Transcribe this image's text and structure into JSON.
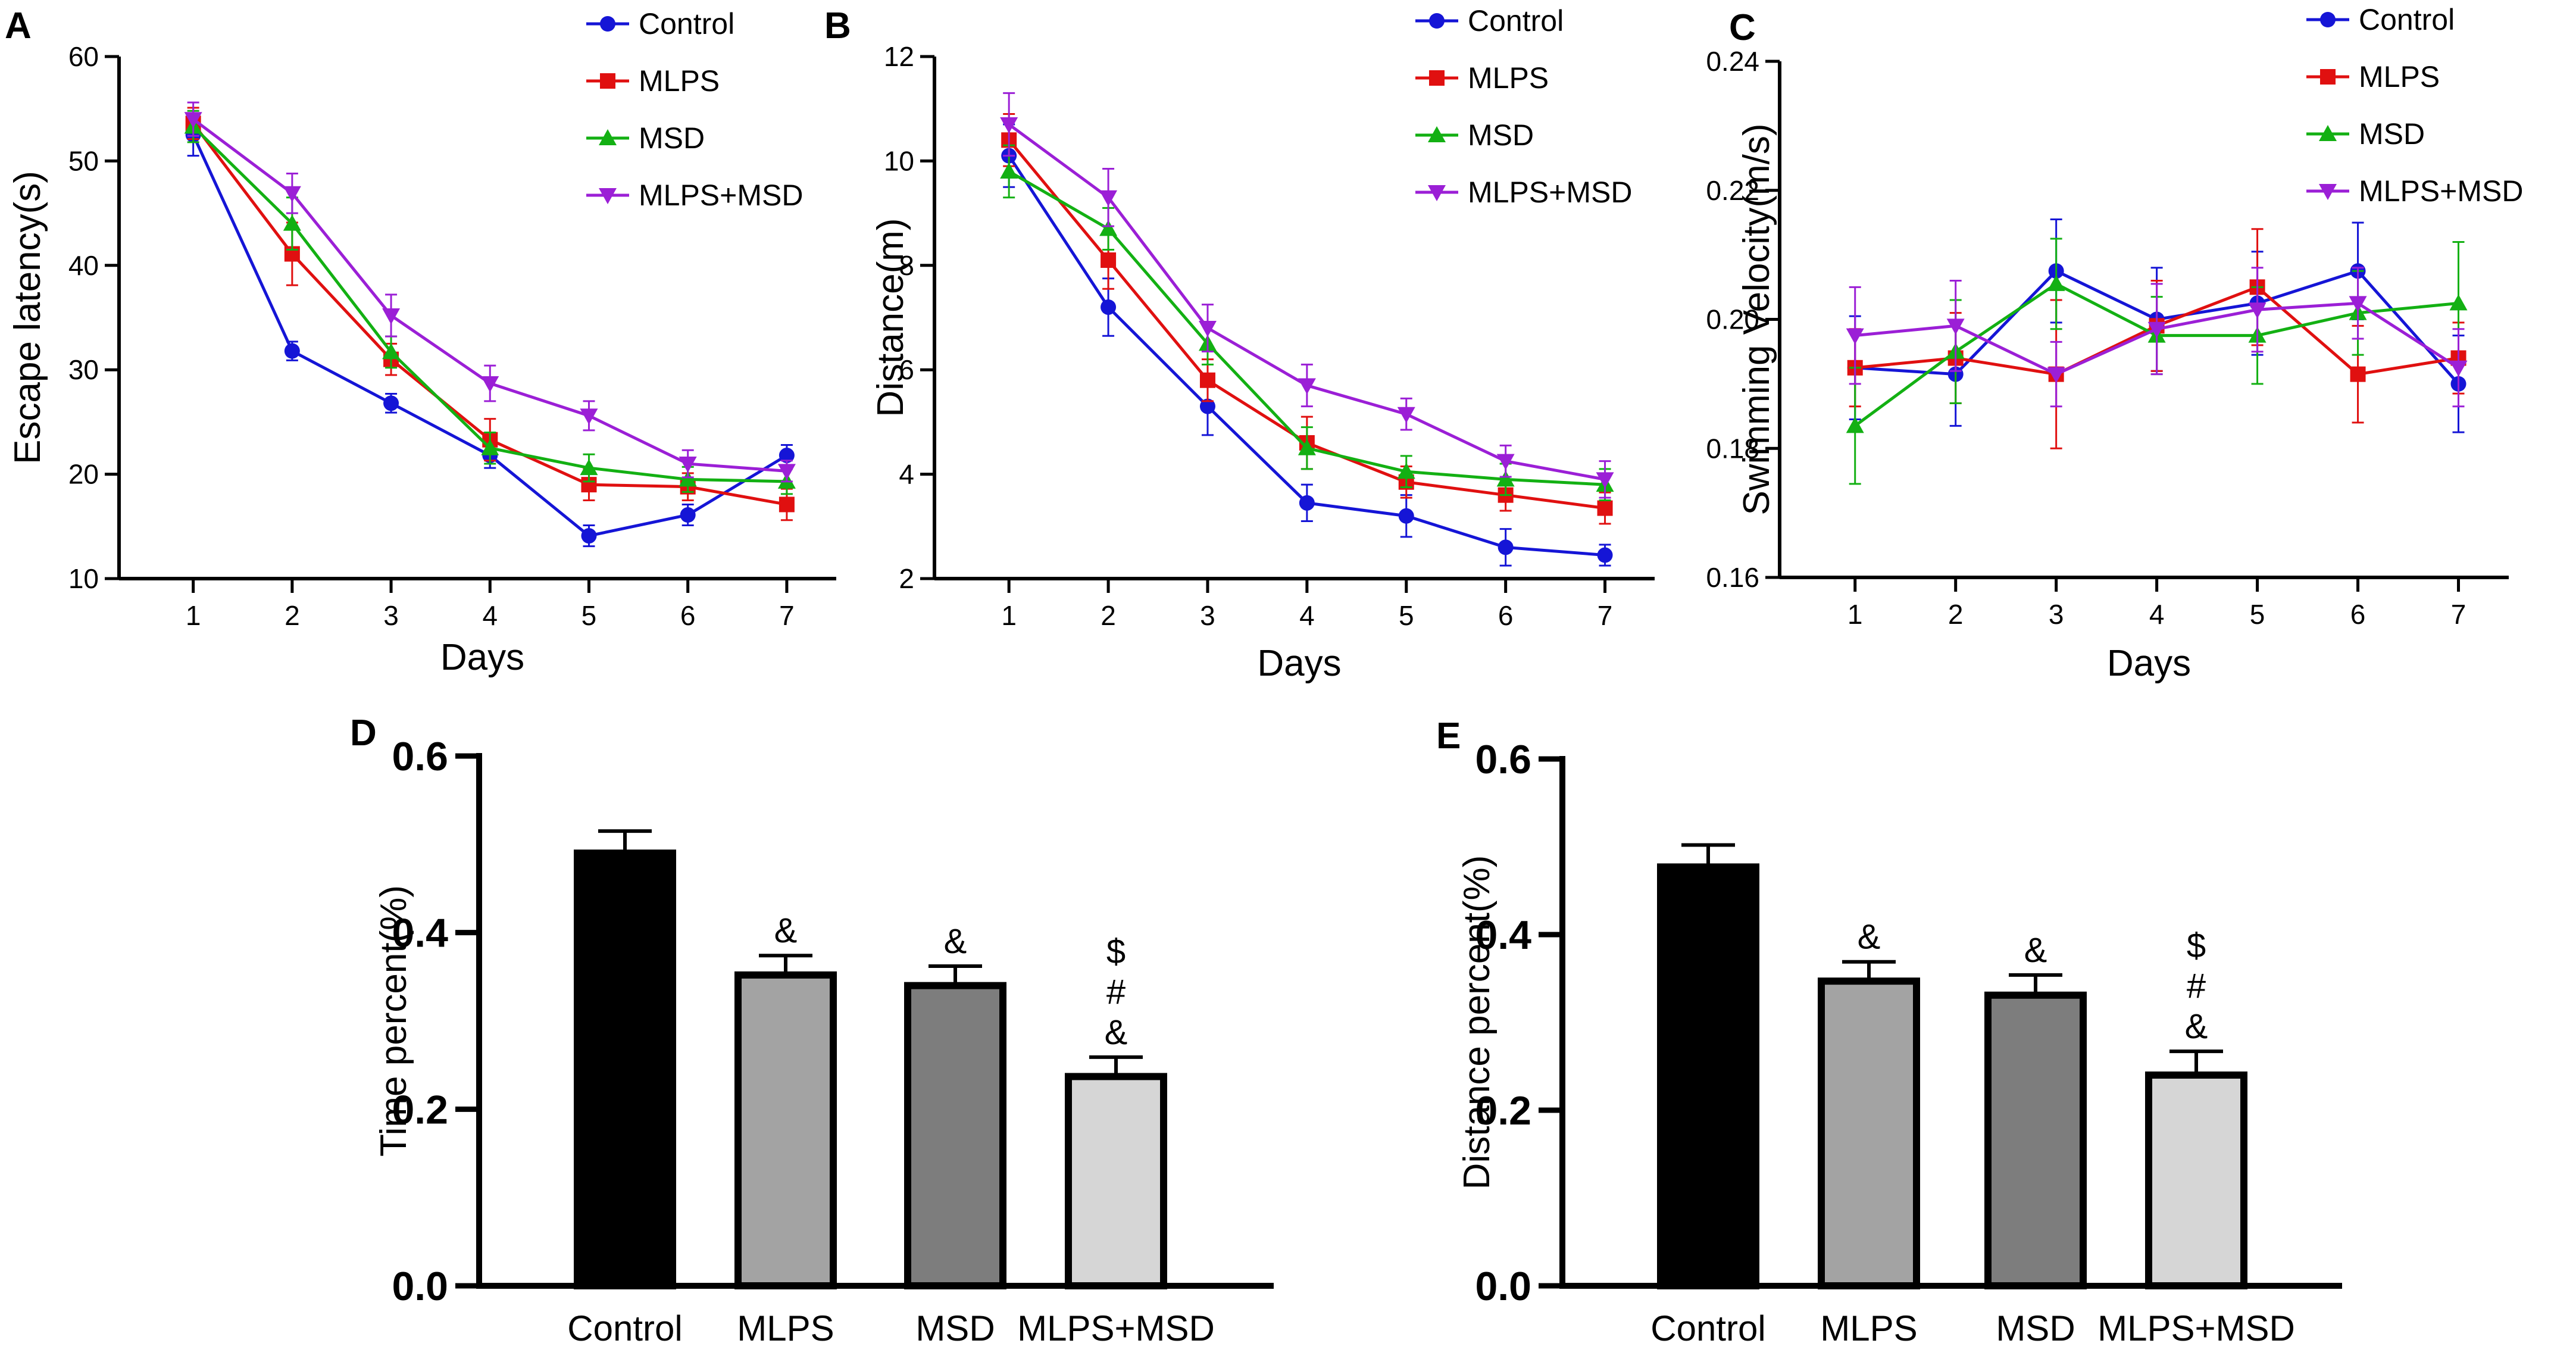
{
  "figure": {
    "colors": {
      "Control": "#1515d6",
      "MLPS": "#e01010",
      "MSD": "#13b013",
      "MLPS+MSD": "#9b1fd6",
      "axis": "#000000"
    }
  },
  "chart_data": [
    {
      "id": "A",
      "panel_label": "A",
      "type": "line",
      "title": "",
      "xlabel": "Days",
      "ylabel": "Escape latency(s)",
      "x": [
        1,
        2,
        3,
        4,
        5,
        6,
        7
      ],
      "xlim": [
        0.25,
        7.5
      ],
      "ylim": [
        10,
        60
      ],
      "yticks": [
        10,
        20,
        30,
        40,
        50,
        60
      ],
      "ytick_labels": [
        "10",
        "20",
        "30",
        "40",
        "50",
        "60"
      ],
      "grid": false,
      "legend": "top-right",
      "series": [
        {
          "name": "Control",
          "marker": "circle",
          "values": [
            52.5,
            31.8,
            26.8,
            21.8,
            14.1,
            16.1,
            21.8
          ],
          "err": [
            2.0,
            0.9,
            0.9,
            1.2,
            1.0,
            1.0,
            1.0
          ]
        },
        {
          "name": "MLPS",
          "marker": "square",
          "values": [
            53.6,
            41.1,
            31.0,
            23.3,
            19.0,
            18.8,
            17.1
          ],
          "err": [
            1.5,
            3.0,
            1.5,
            2.0,
            1.5,
            1.3,
            1.5
          ]
        },
        {
          "name": "MSD",
          "marker": "triangle-up",
          "values": [
            53.3,
            44.0,
            31.7,
            22.5,
            20.6,
            19.5,
            19.3
          ],
          "err": [
            1.5,
            2.5,
            1.5,
            1.5,
            1.3,
            1.2,
            1.2
          ]
        },
        {
          "name": "MLPS+MSD",
          "marker": "triangle-down",
          "values": [
            54.0,
            46.9,
            35.2,
            28.7,
            25.6,
            21.0,
            20.3
          ],
          "err": [
            1.6,
            1.9,
            2.0,
            1.7,
            1.4,
            1.3,
            1.0
          ]
        }
      ]
    },
    {
      "id": "B",
      "panel_label": "B",
      "type": "line",
      "title": "",
      "xlabel": "Days",
      "ylabel": "Distance(m)",
      "x": [
        1,
        2,
        3,
        4,
        5,
        6,
        7
      ],
      "xlim": [
        0.25,
        7.5
      ],
      "ylim": [
        2,
        12
      ],
      "yticks": [
        2,
        4,
        6,
        8,
        10,
        12
      ],
      "ytick_labels": [
        "2",
        "4",
        "6",
        "8",
        "10",
        "12"
      ],
      "grid": false,
      "legend": "top-right",
      "series": [
        {
          "name": "Control",
          "marker": "circle",
          "values": [
            10.1,
            7.2,
            5.3,
            3.45,
            3.2,
            2.6,
            2.45
          ],
          "err": [
            0.6,
            0.55,
            0.55,
            0.35,
            0.4,
            0.35,
            0.2
          ]
        },
        {
          "name": "MLPS",
          "marker": "square",
          "values": [
            10.4,
            8.1,
            5.8,
            4.6,
            3.85,
            3.6,
            3.35
          ],
          "err": [
            0.5,
            0.55,
            0.4,
            0.5,
            0.3,
            0.3,
            0.3
          ]
        },
        {
          "name": "MSD",
          "marker": "triangle-up",
          "values": [
            9.8,
            8.7,
            6.5,
            4.5,
            4.05,
            3.9,
            3.8
          ],
          "err": [
            0.5,
            0.4,
            0.4,
            0.4,
            0.3,
            0.3,
            0.3
          ]
        },
        {
          "name": "MLPS+MSD",
          "marker": "triangle-down",
          "values": [
            10.7,
            9.3,
            6.8,
            5.7,
            5.15,
            4.25,
            3.9
          ],
          "err": [
            0.6,
            0.55,
            0.45,
            0.4,
            0.3,
            0.3,
            0.35
          ]
        }
      ]
    },
    {
      "id": "C",
      "panel_label": "C",
      "type": "line",
      "title": "",
      "xlabel": "Days",
      "ylabel": "Swimming Velocity(m/s)",
      "x": [
        1,
        2,
        3,
        4,
        5,
        6,
        7
      ],
      "xlim": [
        0.25,
        7.5
      ],
      "ylim": [
        0.16,
        0.24
      ],
      "yticks": [
        0.16,
        0.18,
        0.2,
        0.22,
        0.24
      ],
      "ytick_labels": [
        "0.16",
        "0.18",
        "0.20",
        "0.22",
        "0.24"
      ],
      "grid": false,
      "legend": "top-right",
      "series": [
        {
          "name": "Control",
          "marker": "circle",
          "values": [
            0.1925,
            0.1915,
            0.2075,
            0.2,
            0.2025,
            0.2075,
            0.19
          ],
          "err": [
            0.008,
            0.008,
            0.008,
            0.008,
            0.008,
            0.0075,
            0.0075
          ]
        },
        {
          "name": "MLPS",
          "marker": "square",
          "values": [
            0.1925,
            0.194,
            0.1915,
            0.199,
            0.205,
            0.1915,
            0.194
          ],
          "err": [
            0.006,
            0.007,
            0.0115,
            0.007,
            0.009,
            0.0075,
            0.0055
          ]
        },
        {
          "name": "MSD",
          "marker": "triangle-up",
          "values": [
            0.1835,
            0.195,
            0.2055,
            0.1975,
            0.1975,
            0.201,
            0.2025
          ],
          "err": [
            0.009,
            0.008,
            0.007,
            0.006,
            0.0075,
            0.0065,
            0.0095
          ]
        },
        {
          "name": "MLPS+MSD",
          "marker": "triangle-down",
          "values": [
            0.1975,
            0.199,
            0.1915,
            0.1985,
            0.2015,
            0.2025,
            0.1925
          ],
          "err": [
            0.0075,
            0.007,
            0.005,
            0.007,
            0.0065,
            0.0055,
            0.006
          ]
        }
      ]
    },
    {
      "id": "D",
      "panel_label": "D",
      "type": "bar",
      "title": "",
      "xlabel": "",
      "ylabel": "Time percent(%)",
      "categories": [
        "Control",
        "MLPS",
        "MSD",
        "MLPS+MSD"
      ],
      "values": [
        0.49,
        0.352,
        0.34,
        0.237
      ],
      "errors": [
        0.025,
        0.022,
        0.022,
        0.022
      ],
      "annotations": [
        [],
        [
          "&"
        ],
        [
          "&"
        ],
        [
          "$",
          "#",
          "&"
        ]
      ],
      "bar_colors": [
        "#000000",
        "#a3a3a3",
        "#7d7d7d",
        "#d6d6d6"
      ],
      "ylim": [
        0,
        0.6
      ],
      "yticks": [
        0,
        0.2,
        0.4,
        0.6
      ],
      "ytick_labels": [
        "0.0",
        "0.2",
        "0.4",
        "0.6"
      ],
      "grid": false
    },
    {
      "id": "E",
      "panel_label": "E",
      "type": "bar",
      "title": "",
      "xlabel": "",
      "ylabel": "Distance percent(%)",
      "categories": [
        "Control",
        "MLPS",
        "MSD",
        "MLPS+MSD"
      ],
      "values": [
        0.477,
        0.347,
        0.331,
        0.24
      ],
      "errors": [
        0.025,
        0.022,
        0.023,
        0.027
      ],
      "annotations": [
        [],
        [
          "&"
        ],
        [
          "&"
        ],
        [
          "$",
          "#",
          "&"
        ]
      ],
      "bar_colors": [
        "#000000",
        "#a3a3a3",
        "#7d7d7d",
        "#d6d6d6"
      ],
      "ylim": [
        0,
        0.6
      ],
      "yticks": [
        0,
        0.2,
        0.4,
        0.6
      ],
      "ytick_labels": [
        "0.0",
        "0.2",
        "0.4",
        "0.6"
      ],
      "grid": false
    }
  ]
}
